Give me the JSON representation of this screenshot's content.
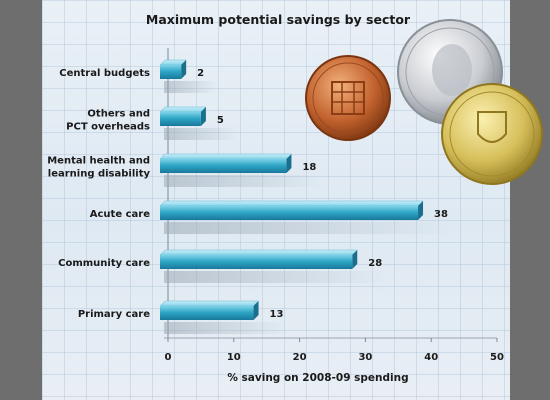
{
  "chart_data": {
    "type": "bar",
    "orientation": "horizontal",
    "title": "Maximum potential savings by sector",
    "xlabel": "% saving on 2008-09 spending",
    "ylabel": "",
    "categories": [
      [
        "Central budgets"
      ],
      [
        "Others and",
        "PCT overheads"
      ],
      [
        "Mental health and",
        "learning disability"
      ],
      [
        "Acute care"
      ],
      [
        "Community care"
      ],
      [
        "Primary care"
      ]
    ],
    "values": [
      2,
      5,
      18,
      38,
      28,
      13
    ],
    "value_labels": [
      "2",
      "5",
      "18",
      "38",
      "28",
      "13"
    ],
    "xlim": [
      0,
      50
    ],
    "xticks": [
      "0",
      "10",
      "20",
      "30",
      "40",
      "50"
    ],
    "bar_color": "#2aa3c4",
    "grid": true,
    "legend": "none"
  },
  "decorations": [
    "coin-penny-icon",
    "coin-ten-pence-icon",
    "coin-pound-icon"
  ]
}
